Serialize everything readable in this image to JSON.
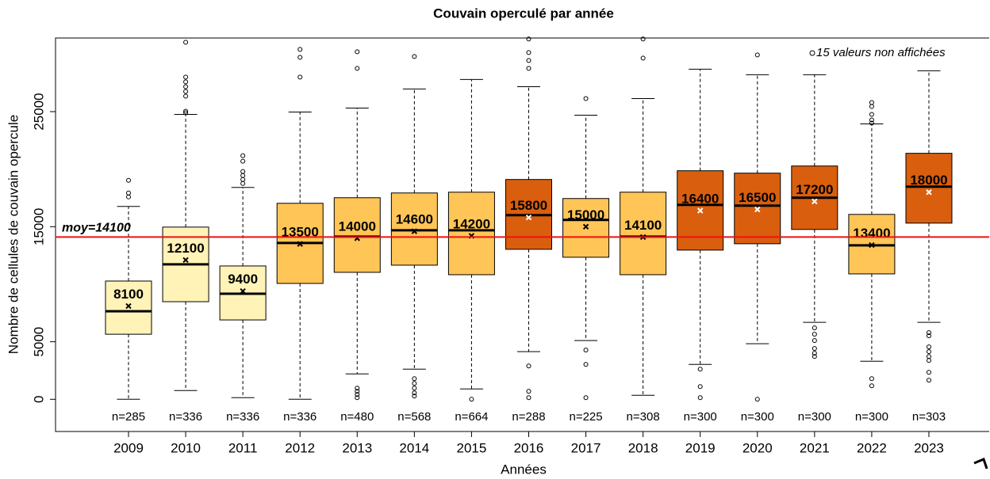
{
  "chart_data": {
    "type": "boxplot",
    "title": "Couvain operculé par année",
    "x_label": "Années",
    "y_label": "Nombre de cellules de couvain opercule",
    "categories": [
      "2009",
      "2010",
      "2011",
      "2012",
      "2013",
      "2014",
      "2015",
      "2016",
      "2017",
      "2018",
      "2019",
      "2020",
      "2021",
      "2022",
      "2023"
    ],
    "ylim": [
      -2800,
      31400
    ],
    "yticks": [
      0,
      5000,
      15000,
      25000
    ],
    "mean_line": {
      "value": 14100,
      "label": "moy=14100",
      "color": "#ee1111"
    },
    "annotation": "15 valeurs non affichées",
    "boxes": [
      {
        "whisker_low": 0,
        "q1": 5655,
        "median": 7655,
        "q3": 10276,
        "whisker_high": 16760,
        "mean": 8100,
        "outliers": [
          17590,
          17930,
          19030
        ],
        "n_label": "n=285",
        "color": "#fff3b8"
      },
      {
        "whisker_low": 759,
        "q1": 8483,
        "median": 11724,
        "q3": 14965,
        "whisker_high": 24760,
        "mean": 12100,
        "outliers": [
          24897,
          25034,
          26345,
          26759,
          27172,
          27586,
          28000,
          31034
        ],
        "n_label": "n=336",
        "color": "#fff3b8"
      },
      {
        "whisker_low": 138,
        "q1": 6897,
        "median": 9172,
        "q3": 11586,
        "whisker_high": 18414,
        "mean": 9400,
        "outliers": [
          18759,
          19103,
          19448,
          19793,
          20690,
          21172
        ],
        "n_label": "n=336",
        "color": "#fff3b8"
      },
      {
        "whisker_low": 0,
        "q1": 10069,
        "median": 13586,
        "q3": 17034,
        "whisker_high": 24966,
        "mean": 13500,
        "outliers": [
          28000,
          29724,
          30414
        ],
        "n_label": "n=336",
        "color": "#ffc557"
      },
      {
        "whisker_low": 2207,
        "q1": 11034,
        "median": 14138,
        "q3": 17517,
        "whisker_high": 25310,
        "mean": 14000,
        "outliers": [
          138,
          414,
          690,
          966,
          28759,
          30207
        ],
        "n_label": "n=480",
        "color": "#ffc557"
      },
      {
        "whisker_low": 2621,
        "q1": 11655,
        "median": 14690,
        "q3": 17931,
        "whisker_high": 26966,
        "mean": 14600,
        "outliers": [
          276,
          552,
          966,
          1379,
          1793,
          29793
        ],
        "n_label": "n=568",
        "color": "#ffc557"
      },
      {
        "whisker_low": 897,
        "q1": 10828,
        "median": 14690,
        "q3": 18000,
        "whisker_high": 27793,
        "mean": 14200,
        "outliers": [
          0
        ],
        "n_label": "n=664",
        "color": "#ffc557"
      },
      {
        "whisker_low": 4138,
        "q1": 13034,
        "median": 16000,
        "q3": 19103,
        "whisker_high": 27172,
        "mean": 15800,
        "outliers": [
          138,
          690,
          2897,
          28759,
          29448,
          30138,
          31310
        ],
        "n_label": "n=288",
        "color": "#d95f0e"
      },
      {
        "whisker_low": 5103,
        "q1": 12345,
        "median": 15586,
        "q3": 17448,
        "whisker_high": 24690,
        "mean": 15000,
        "outliers": [
          138,
          3034,
          4276,
          26138
        ],
        "n_label": "n=225",
        "color": "#ffc557"
      },
      {
        "whisker_low": 345,
        "q1": 10828,
        "median": 14138,
        "q3": 18000,
        "whisker_high": 26138,
        "mean": 14100,
        "outliers": [
          29655,
          31310
        ],
        "n_label": "n=308",
        "color": "#ffc557"
      },
      {
        "whisker_low": 3034,
        "q1": 12966,
        "median": 16897,
        "q3": 19862,
        "whisker_high": 28690,
        "mean": 16400,
        "outliers": [
          138,
          1103,
          2621
        ],
        "n_label": "n=300",
        "color": "#d95f0e"
      },
      {
        "whisker_low": 4828,
        "q1": 13517,
        "median": 16828,
        "q3": 19655,
        "whisker_high": 28207,
        "mean": 16500,
        "outliers": [
          0,
          29931
        ],
        "n_label": "n=300",
        "color": "#d95f0e"
      },
      {
        "whisker_low": 6690,
        "q1": 14759,
        "median": 17517,
        "q3": 20276,
        "whisker_high": 28207,
        "mean": 17200,
        "outliers": [
          3724,
          4000,
          4414,
          5103,
          5655,
          6207
        ],
        "n_label": "n=300",
        "color": "#d95f0e"
      },
      {
        "whisker_low": 3310,
        "q1": 10897,
        "median": 13379,
        "q3": 16069,
        "whisker_high": 23931,
        "mean": 13400,
        "outliers": [
          1172,
          1793,
          24000,
          24276,
          24759,
          25448,
          25793
        ],
        "n_label": "n=300",
        "color": "#ffc557"
      },
      {
        "whisker_low": 6690,
        "q1": 15310,
        "median": 18483,
        "q3": 21379,
        "whisker_high": 28552,
        "mean": 18000,
        "outliers": [
          1655,
          2345,
          3379,
          3724,
          4138,
          4552,
          5517,
          5793
        ],
        "n_label": "n=303",
        "color": "#d95f0e"
      }
    ]
  }
}
